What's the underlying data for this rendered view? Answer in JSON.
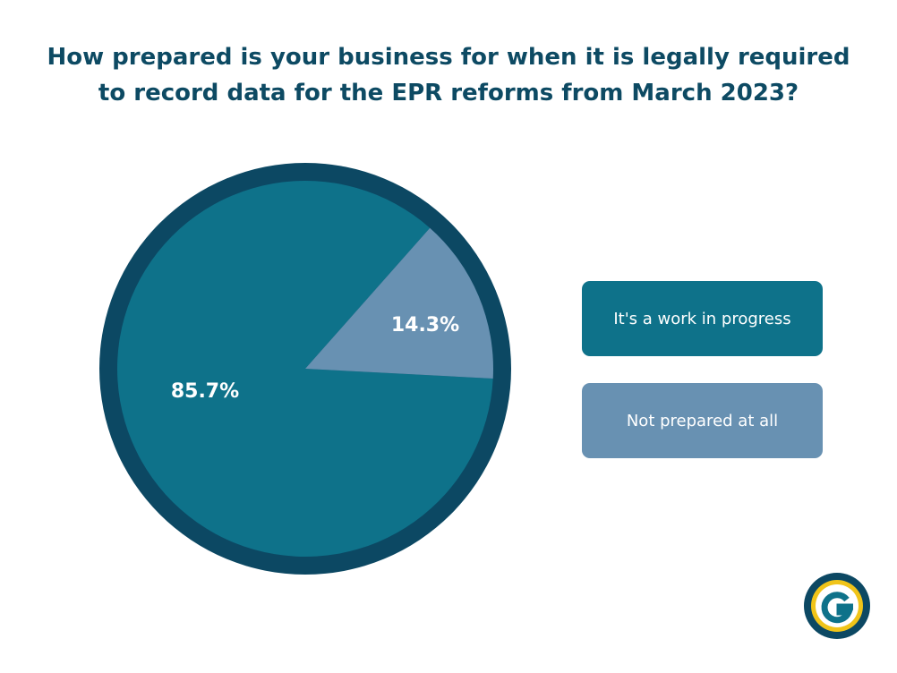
{
  "chart_data": {
    "type": "pie",
    "title_lines": [
      "How prepared is your business for when it is legally required",
      "to record data for the EPR reforms from March 2023?"
    ],
    "slices": [
      {
        "label": "It's a work in progress",
        "value": 85.7,
        "value_label": "85.7%",
        "color": "#0e728a"
      },
      {
        "label": "Not prepared at all",
        "value": 14.3,
        "value_label": "14.3%",
        "color": "#6891b2"
      }
    ],
    "ring_color": "#0c4863",
    "legend_placement": "right"
  },
  "logo": {
    "name": "logo-icon",
    "colors": [
      "#0c4863",
      "#f0c419",
      "#0e728a"
    ]
  }
}
